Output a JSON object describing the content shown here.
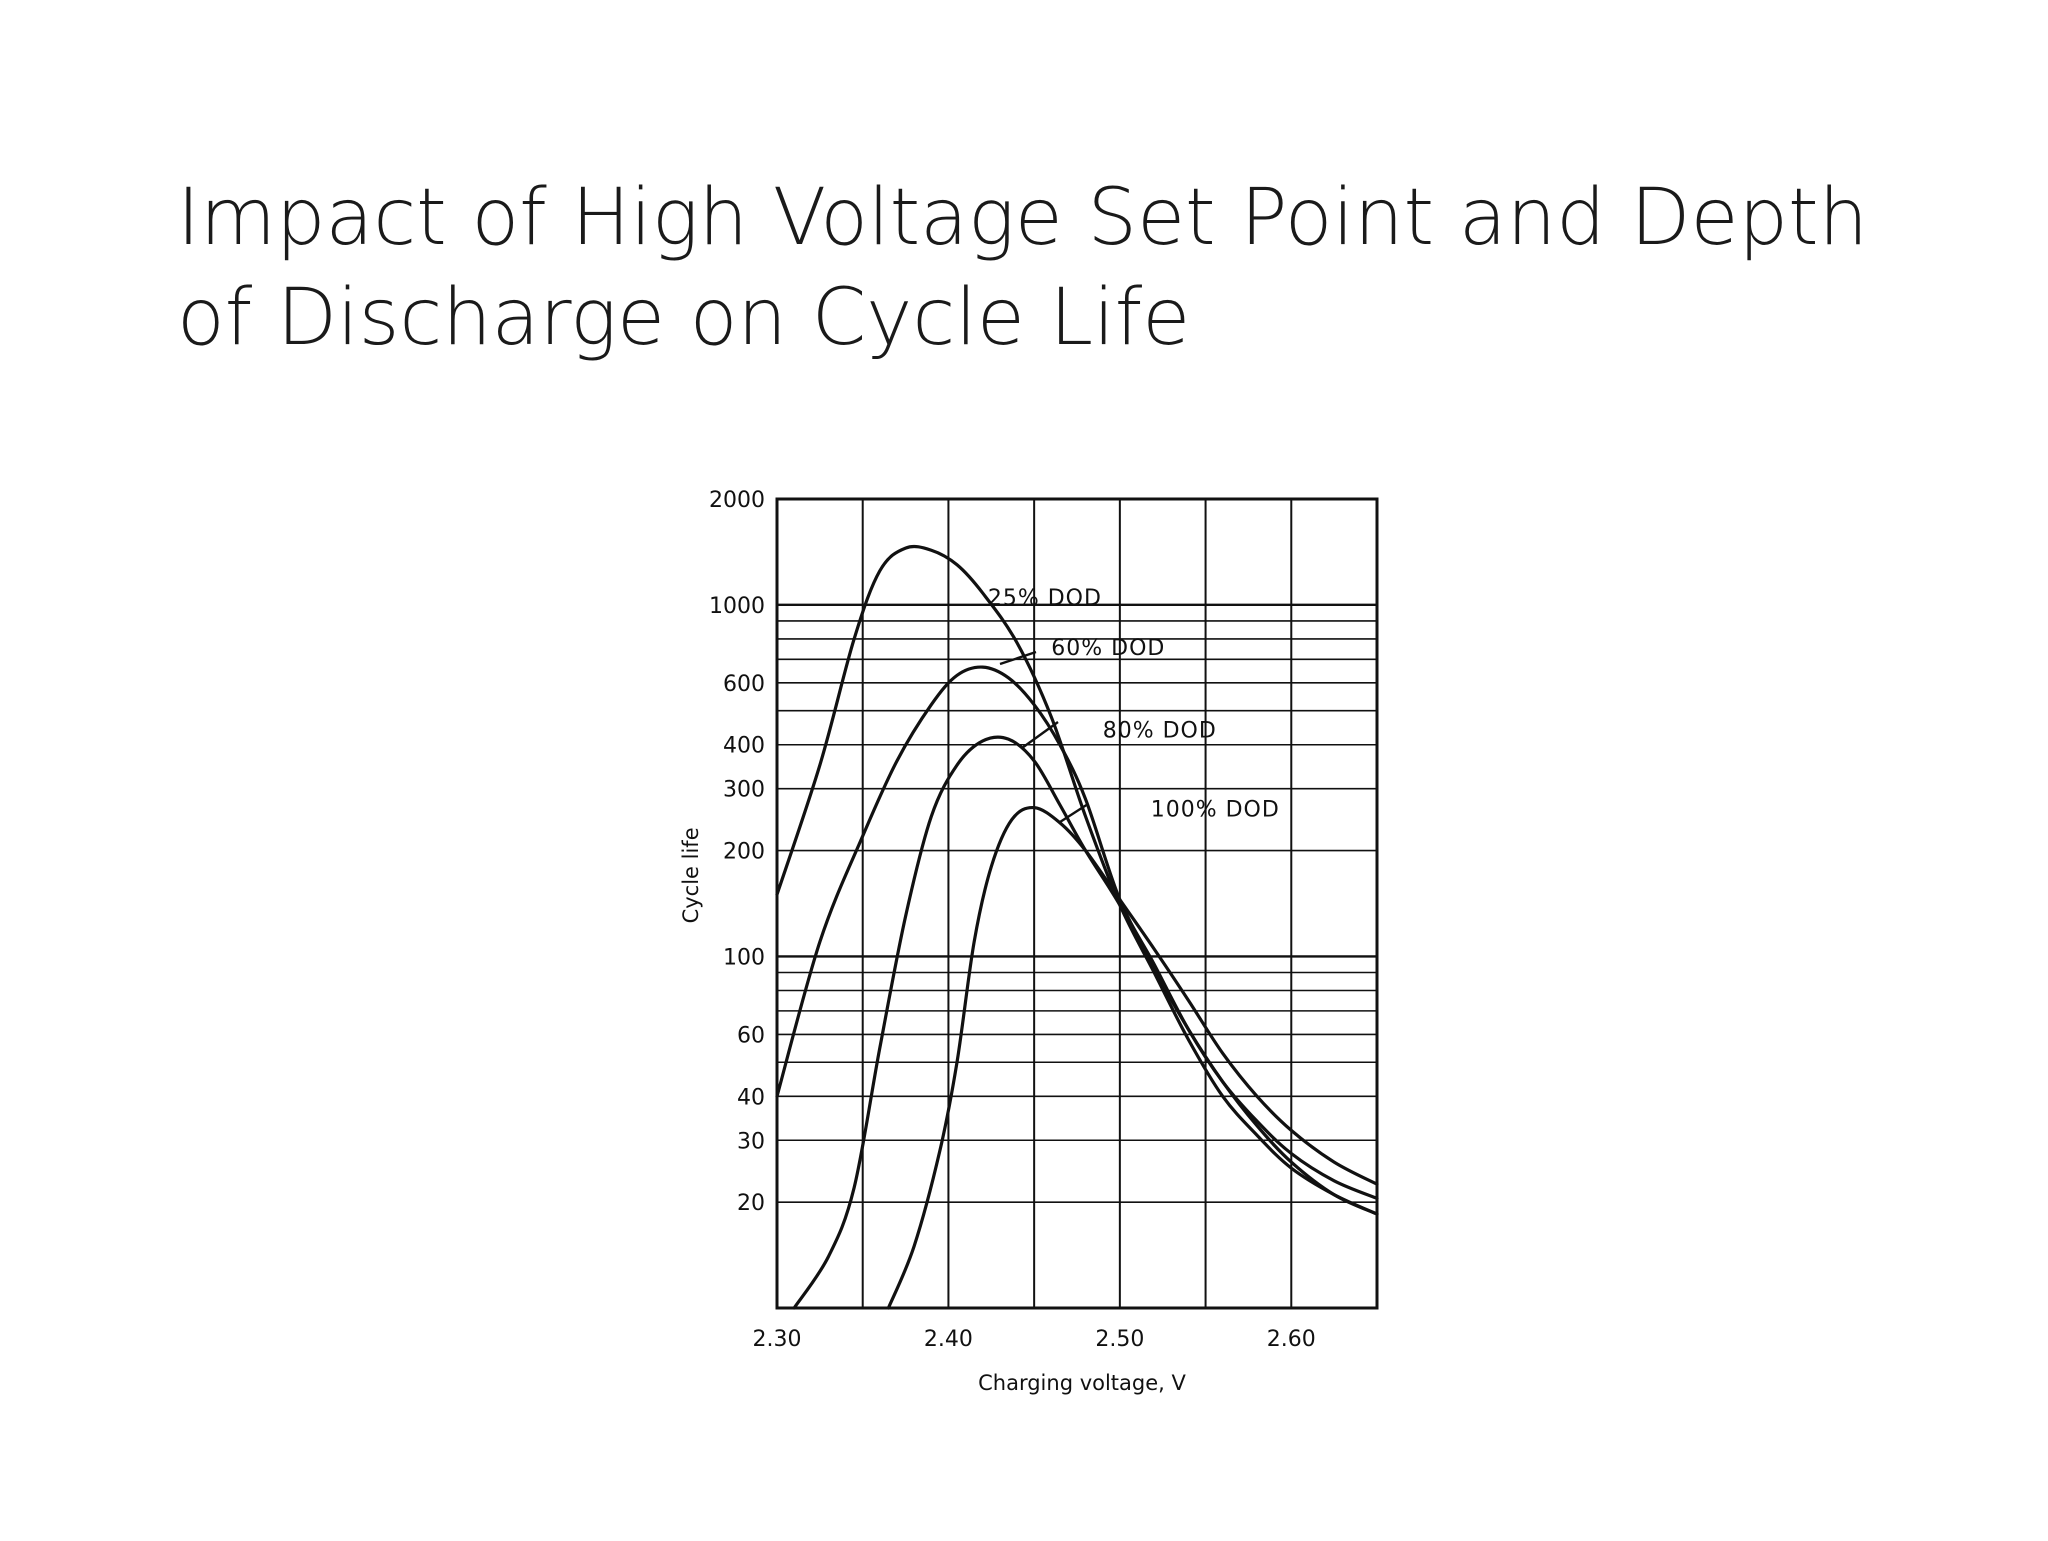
{
  "slide": {
    "title": "Impact of High Voltage Set Point and Depth of Discharge on Cycle Life"
  },
  "chart_data": {
    "type": "line",
    "title": "",
    "xlabel": "Charging voltage, V",
    "ylabel": "Cycle life",
    "xscale": "linear",
    "yscale": "log",
    "xlim": [
      2.3,
      2.65
    ],
    "ylim": [
      10,
      2000
    ],
    "grid": true,
    "legend": "none",
    "x_ticks": [
      2.3,
      2.4,
      2.5,
      2.6
    ],
    "x_tick_labels": [
      "2.30",
      "2.40",
      "2.50",
      "2.60"
    ],
    "y_ticks": [
      20,
      30,
      40,
      60,
      100,
      200,
      300,
      400,
      600,
      1000,
      2000
    ],
    "y_tick_labels": [
      "20",
      "30",
      "40",
      "60",
      "100",
      "200",
      "300",
      "400",
      "600",
      "1000",
      "2000"
    ],
    "series": [
      {
        "name": "25% DOD",
        "label_at": [
          2.423,
          1000
        ],
        "points": [
          [
            2.3,
            150
          ],
          [
            2.325,
            350
          ],
          [
            2.345,
            800
          ],
          [
            2.36,
            1250
          ],
          [
            2.375,
            1450
          ],
          [
            2.39,
            1430
          ],
          [
            2.405,
            1300
          ],
          [
            2.42,
            1080
          ],
          [
            2.44,
            780
          ],
          [
            2.46,
            480
          ],
          [
            2.48,
            250
          ],
          [
            2.5,
            140
          ],
          [
            2.52,
            90
          ],
          [
            2.54,
            58
          ],
          [
            2.56,
            40
          ],
          [
            2.58,
            31
          ],
          [
            2.6,
            25
          ],
          [
            2.625,
            21
          ],
          [
            2.65,
            18.5
          ]
        ]
      },
      {
        "name": "60% DOD",
        "label_at": [
          2.46,
          720
        ],
        "points": [
          [
            2.3,
            40
          ],
          [
            2.325,
            110
          ],
          [
            2.35,
            220
          ],
          [
            2.37,
            360
          ],
          [
            2.39,
            520
          ],
          [
            2.405,
            630
          ],
          [
            2.42,
            665
          ],
          [
            2.435,
            620
          ],
          [
            2.45,
            520
          ],
          [
            2.465,
            400
          ],
          [
            2.48,
            280
          ],
          [
            2.5,
            145
          ],
          [
            2.52,
            95
          ],
          [
            2.54,
            62
          ],
          [
            2.56,
            44
          ],
          [
            2.58,
            34
          ],
          [
            2.6,
            27.5
          ],
          [
            2.625,
            23
          ],
          [
            2.65,
            20.5
          ]
        ]
      },
      {
        "name": "80% DOD",
        "label_at": [
          2.49,
          420
        ],
        "points": [
          [
            2.31,
            10
          ],
          [
            2.33,
            14
          ],
          [
            2.345,
            22
          ],
          [
            2.36,
            55
          ],
          [
            2.375,
            130
          ],
          [
            2.39,
            250
          ],
          [
            2.405,
            350
          ],
          [
            2.42,
            410
          ],
          [
            2.435,
            415
          ],
          [
            2.45,
            360
          ],
          [
            2.465,
            270
          ],
          [
            2.48,
            200
          ],
          [
            2.5,
            140
          ],
          [
            2.52,
            92
          ],
          [
            2.54,
            62
          ],
          [
            2.56,
            44
          ],
          [
            2.58,
            33
          ],
          [
            2.6,
            26
          ],
          [
            2.625,
            21
          ],
          [
            2.65,
            18.5
          ]
        ]
      },
      {
        "name": "100% DOD",
        "label_at": [
          2.518,
          250
        ],
        "points": [
          [
            2.365,
            10
          ],
          [
            2.38,
            15
          ],
          [
            2.395,
            28
          ],
          [
            2.405,
            50
          ],
          [
            2.415,
            110
          ],
          [
            2.425,
            180
          ],
          [
            2.437,
            245
          ],
          [
            2.45,
            265
          ],
          [
            2.465,
            240
          ],
          [
            2.48,
            200
          ],
          [
            2.5,
            145
          ],
          [
            2.52,
            105
          ],
          [
            2.54,
            75
          ],
          [
            2.56,
            53
          ],
          [
            2.58,
            40
          ],
          [
            2.6,
            32
          ],
          [
            2.625,
            26
          ],
          [
            2.65,
            22.5
          ]
        ]
      }
    ]
  }
}
